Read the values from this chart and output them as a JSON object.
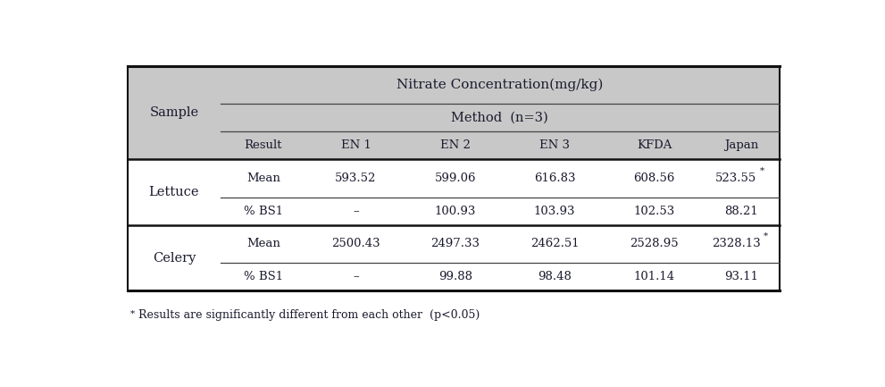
{
  "title1": "Nitrate Concentration(mg/kg)",
  "title2": "Method  (n=3)",
  "col_sample": "Sample",
  "col_result": "Result",
  "col_headers": [
    "EN 1",
    "EN 2",
    "EN 3",
    "KFDA",
    "Japan"
  ],
  "rows": [
    {
      "sample": "Lettuce",
      "vals1": [
        "Mean",
        "593.52",
        "599.06",
        "616.83",
        "608.56",
        "523.55*"
      ],
      "vals2": [
        "% BS1",
        "–",
        "100.93",
        "103.93",
        "102.53",
        "88.21"
      ]
    },
    {
      "sample": "Celery",
      "vals1": [
        "Mean",
        "2500.43",
        "2497.33",
        "2462.51",
        "2528.95",
        "2328.13*"
      ],
      "vals2": [
        "% BS1",
        "–",
        "99.88",
        "98.48",
        "101.14",
        "93.11"
      ]
    }
  ],
  "footnote_star": "*",
  "footnote_text": "Results are significantly different from each other  (p<0.05)",
  "bg_header": "#c8c8c8",
  "bg_white": "#ffffff",
  "text_color": "#1a1a2e",
  "line_thin": "#444444",
  "line_thick": "#111111",
  "fig_w": 9.91,
  "fig_h": 4.33,
  "dpi": 100
}
